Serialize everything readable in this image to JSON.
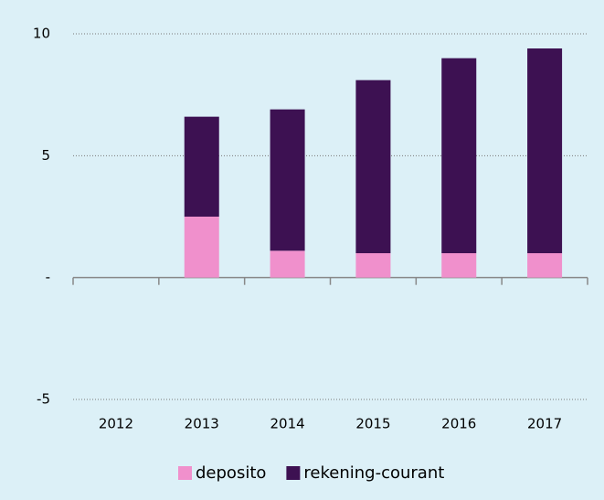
{
  "chart_data": {
    "type": "stacked_bar",
    "categories": [
      "2012",
      "2013",
      "2014",
      "2015",
      "2016",
      "2017"
    ],
    "series": [
      {
        "name": "deposito",
        "color": "#f090cc",
        "values": [
          null,
          2.5,
          1.1,
          1.0,
          1.0,
          1.0
        ]
      },
      {
        "name": "rekening-courant",
        "color": "#3d1152",
        "values": [
          null,
          4.1,
          5.8,
          7.1,
          8.0,
          8.4
        ]
      }
    ],
    "ylim": [
      -5,
      10
    ],
    "yticks": [
      {
        "value": -5,
        "label": "-5"
      },
      {
        "value": 0,
        "label": "-"
      },
      {
        "value": 5,
        "label": "5"
      },
      {
        "value": 10,
        "label": "10"
      }
    ],
    "grid": true,
    "legend": "bottom"
  }
}
